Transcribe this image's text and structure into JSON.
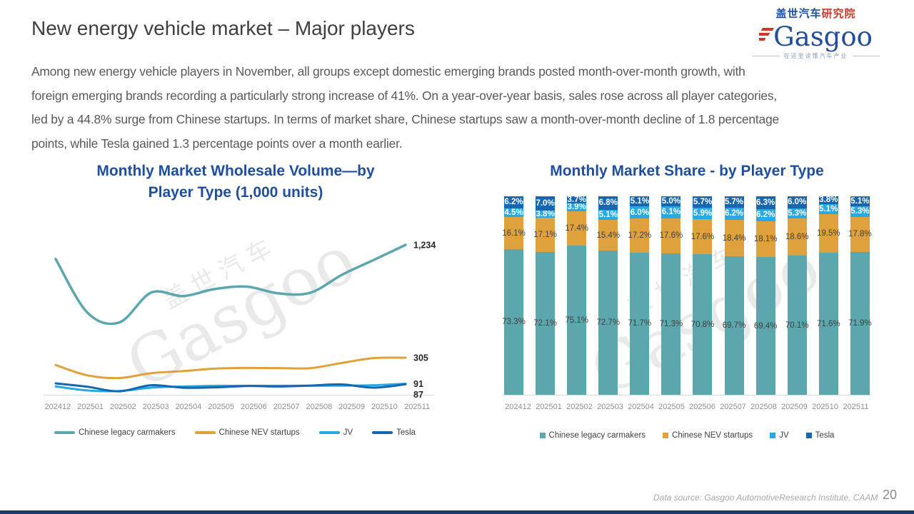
{
  "page": {
    "title": "New energy vehicle market – Major players",
    "body_lines": [
      "Among new energy vehicle players in November, all groups except domestic emerging brands posted month-over-month growth, with",
      "foreign emerging brands recording a particularly strong increase of 41%. On a year-over-year basis, sales rose across all player categories,",
      "led by a 44.8% surge from Chinese startups. In terms of market share, Chinese startups saw a month-over-month decline of 1.8 percentage",
      "points, while Tesla gained 1.3 percentage points over a month earlier."
    ],
    "data_source": "Data source: Gasgoo AutomotiveResearch Institute, CAAM",
    "page_number": "20"
  },
  "logo": {
    "cn_top_blue": "盖世汽车",
    "cn_top_red": "研究院",
    "wordmark": "Gasgoo",
    "tagline": "在这里读懂汽车产业"
  },
  "watermark": {
    "cn": "盖世汽车",
    "en": "Gasgoo"
  },
  "colors": {
    "title_blue": "#1F4E9E",
    "legacy_teal": "#5BA7AD",
    "startups_orange": "#DFA13C",
    "jv_lightblue": "#29A9E1",
    "tesla_darkblue": "#1666B0",
    "logo_red": "#C9392C",
    "bottom_bar_navy": "#1F3864"
  },
  "chart_data": [
    {
      "type": "line",
      "title": "Monthly Market Wholesale Volume—by Player Type (1,000 units)",
      "title_lines": [
        "Monthly Market Wholesale Volume—by",
        "Player Type (1,000 units)"
      ],
      "categories": [
        "202412",
        "202501",
        "202502",
        "202503",
        "202504",
        "202505",
        "202506",
        "202507",
        "202508",
        "202509",
        "202510",
        "202511"
      ],
      "ylim": [
        0,
        1240
      ],
      "grid": false,
      "legend_position": "bottom",
      "series": [
        {
          "name": "Chinese legacy carmakers",
          "color": "#5BA7AD",
          "end_label": "1,234",
          "values": [
            1117,
            676,
            595,
            841,
            812,
            870,
            890,
            835,
            840,
            988,
            1110,
            1234
          ]
        },
        {
          "name": "Chinese NEV startups",
          "color": "#DFA13C",
          "end_label": "305",
          "values": [
            245,
            160,
            138,
            178,
            195,
            215,
            221,
            220,
            219,
            262,
            302,
            305
          ]
        },
        {
          "name": "JV",
          "color": "#29A9E1",
          "end_label": "91",
          "values": [
            69,
            36,
            31,
            59,
            68,
            74,
            74,
            74,
            75,
            75,
            79,
            91
          ]
        },
        {
          "name": "Tesla",
          "color": "#1666B0",
          "end_label": "87",
          "values": [
            94,
            66,
            29,
            79,
            58,
            61,
            72,
            68,
            76,
            85,
            59,
            87
          ]
        }
      ]
    },
    {
      "type": "stacked-bar",
      "title": "Monthly Market Share - by Player Type",
      "categories": [
        "202412",
        "202501",
        "202502",
        "202503",
        "202504",
        "202505",
        "202506",
        "202507",
        "202508",
        "202509",
        "202510",
        "202511"
      ],
      "unit": "%",
      "ylim": [
        0,
        100
      ],
      "legend_position": "bottom",
      "series": [
        {
          "name": "Chinese legacy carmakers",
          "color": "#5BA7AD",
          "label_style": "dark",
          "values": [
            73.3,
            72.1,
            75.1,
            72.7,
            71.7,
            71.3,
            70.8,
            69.7,
            69.4,
            70.1,
            71.6,
            71.9
          ]
        },
        {
          "name": "Chinese NEV startups",
          "color": "#DFA13C",
          "label_style": "dark",
          "values": [
            16.1,
            17.1,
            17.4,
            15.4,
            17.2,
            17.6,
            17.6,
            18.4,
            18.1,
            18.6,
            19.5,
            17.8
          ]
        },
        {
          "name": "JV",
          "color": "#29A9E1",
          "label_style": "light",
          "values": [
            4.5,
            3.8,
            3.9,
            5.1,
            6.0,
            6.1,
            5.9,
            6.2,
            6.2,
            5.3,
            5.1,
            5.3
          ]
        },
        {
          "name": "Tesla",
          "color": "#1666B0",
          "label_style": "light",
          "values": [
            6.2,
            7.0,
            3.7,
            6.8,
            5.1,
            5.0,
            5.7,
            5.7,
            6.3,
            6.0,
            3.8,
            5.1
          ]
        }
      ]
    }
  ]
}
